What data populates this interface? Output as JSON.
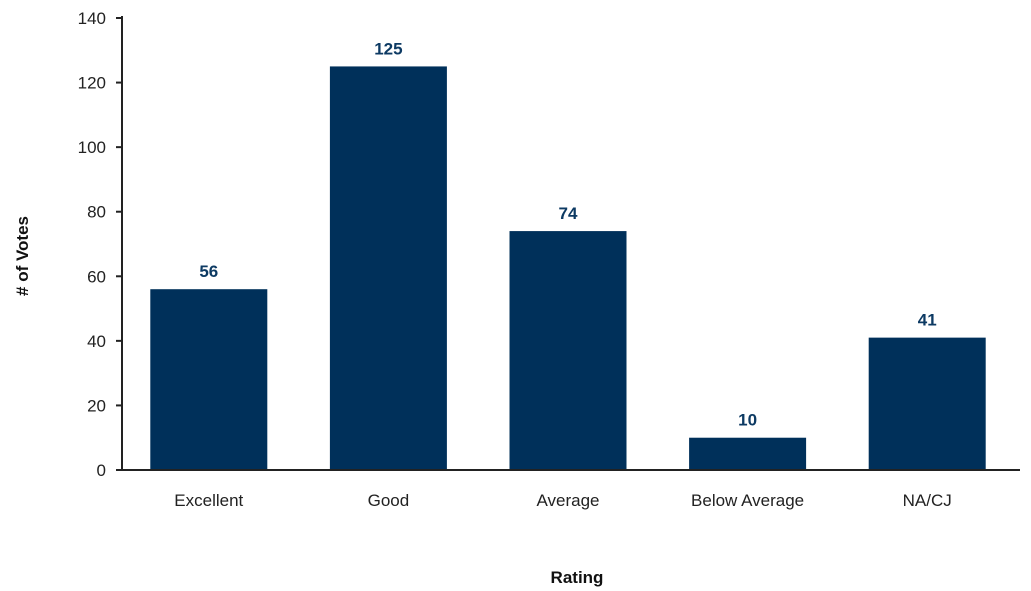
{
  "chart_data": {
    "type": "bar",
    "title": "",
    "xlabel": "Rating",
    "ylabel": "# of Votes",
    "categories": [
      "Excellent",
      "Good",
      "Average",
      "Below Average",
      "NA/CJ"
    ],
    "values": [
      56,
      125,
      74,
      10,
      41
    ],
    "data_labels": [
      "56",
      "125",
      "74",
      "10",
      "41"
    ],
    "ylim": [
      0,
      140
    ],
    "yticks": [
      0,
      20,
      40,
      60,
      80,
      100,
      120,
      140
    ],
    "ytick_labels": [
      "0",
      "20",
      "40",
      "60",
      "80",
      "100",
      "120",
      "140"
    ],
    "grid": false,
    "legend": "none",
    "bar_color": "#00305a",
    "label_color": "#0d3a63"
  }
}
